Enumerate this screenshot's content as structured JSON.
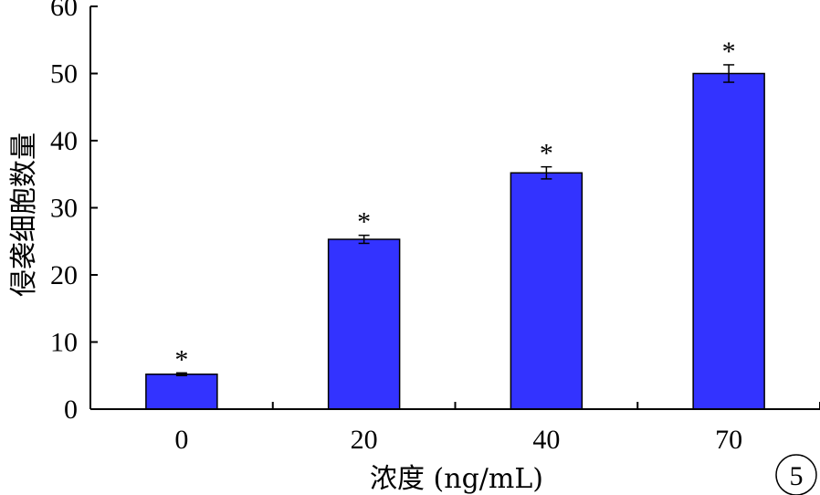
{
  "chart_data": {
    "type": "bar",
    "categories": [
      "0",
      "20",
      "40",
      "70"
    ],
    "values": [
      5.2,
      25.3,
      35.2,
      50.0
    ],
    "errors": [
      0.2,
      0.6,
      0.9,
      1.3
    ],
    "annotations": [
      "*",
      "*",
      "*",
      "*"
    ],
    "xlabel": "浓度 (ng/mL)",
    "ylabel": "侵袭细胞数量",
    "ylim": [
      0,
      60
    ],
    "yticks": [
      0,
      10,
      20,
      30,
      40,
      50,
      60
    ],
    "bar_color": "#3333ff",
    "grid": false
  },
  "badge": {
    "label": "5"
  }
}
